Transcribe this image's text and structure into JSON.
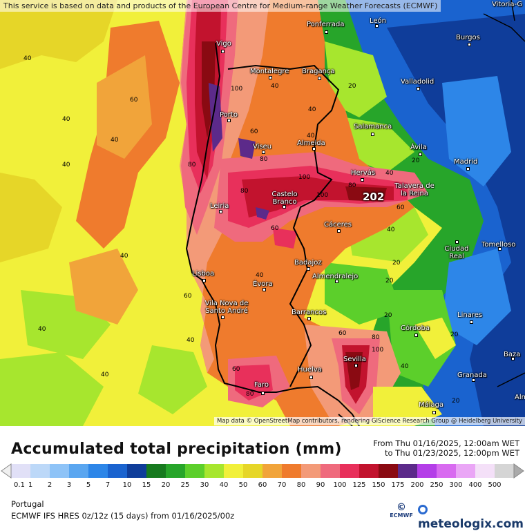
{
  "attribution": {
    "top": "This service is based on data and products of the European Centre for Medium-range Weather Forecasts (ECMWF)",
    "bottom": "Map data © OpenStreetMap contributors, rendering GIScience Research Group @ Heidelberg University"
  },
  "map": {
    "max_value": "202",
    "cities": [
      {
        "name": "Vigo"
      },
      {
        "name": "Ponferrada"
      },
      {
        "name": "León"
      },
      {
        "name": "Burgos"
      },
      {
        "name": "Montalegre"
      },
      {
        "name": "Bragança"
      },
      {
        "name": "Valladolid"
      },
      {
        "name": "Porto"
      },
      {
        "name": "Salamanca"
      },
      {
        "name": "Viseu"
      },
      {
        "name": "Almeida"
      },
      {
        "name": "Ávila"
      },
      {
        "name": "Madrid"
      },
      {
        "name": "Hervás"
      },
      {
        "name": "Talavera de la Reina"
      },
      {
        "name": "Castelo Branco"
      },
      {
        "name": "Leiria"
      },
      {
        "name": "Cáceres"
      },
      {
        "name": "Ciudad Real"
      },
      {
        "name": "Tomelloso"
      },
      {
        "name": "Badajoz"
      },
      {
        "name": "Lisboa"
      },
      {
        "name": "Almendralejo"
      },
      {
        "name": "Évora"
      },
      {
        "name": "Vila Nova de Santo André"
      },
      {
        "name": "Barrancos"
      },
      {
        "name": "Linares"
      },
      {
        "name": "Córdoba"
      },
      {
        "name": "Baza"
      },
      {
        "name": "Sevilla"
      },
      {
        "name": "Huelva"
      },
      {
        "name": "Faro"
      },
      {
        "name": "Granada"
      },
      {
        "name": "Málaga"
      },
      {
        "name": "Vitoria-G"
      },
      {
        "name": "Alm"
      }
    ],
    "contour_labels": [
      "40",
      "40",
      "60",
      "40",
      "40",
      "40",
      "40",
      "80",
      "100",
      "60",
      "80",
      "40",
      "20",
      "100",
      "100",
      "80",
      "80",
      "60",
      "40",
      "20",
      "60",
      "40",
      "40",
      "60",
      "40",
      "20",
      "80",
      "100",
      "60",
      "40",
      "20",
      "60",
      "80",
      "40",
      "40",
      "20",
      "40",
      "20",
      "20"
    ]
  },
  "legend": {
    "title": "Accumulated total precipitation (mm)",
    "period_from": "From Thu 01/16/2025, 12:00am WET",
    "period_to": "to Thu 01/23/2025, 12:00pm WET",
    "ticks": [
      "0.1",
      "1",
      "2",
      "3",
      "5",
      "7",
      "10",
      "15",
      "20",
      "25",
      "30",
      "40",
      "50",
      "60",
      "70",
      "80",
      "90",
      "100",
      "125",
      "150",
      "175",
      "200",
      "250",
      "300",
      "400",
      "500"
    ],
    "colors": [
      "#e1e0f7",
      "#bcd8f8",
      "#8ec3f7",
      "#5aa6f0",
      "#2d86e8",
      "#1a63cf",
      "#0f3d9a",
      "#177a1f",
      "#27a52a",
      "#5ccf2b",
      "#a7e62e",
      "#f1f03a",
      "#e6d628",
      "#f1a43a",
      "#ef7b2d",
      "#f39a78",
      "#ef6a7d",
      "#e8305b",
      "#c2132e",
      "#8a0a12",
      "#5c2a8a",
      "#b43ee8",
      "#d86bf0",
      "#eaa6f6",
      "#f4e0f8",
      "#d5d5d5"
    ],
    "region": "Portugal",
    "model": "ECMWF IFS HRES 0z/12z (15 days) from 01/16/2025/00z",
    "ecmwf_logo": "ECMWF",
    "site_logo": "meteologix.com"
  }
}
